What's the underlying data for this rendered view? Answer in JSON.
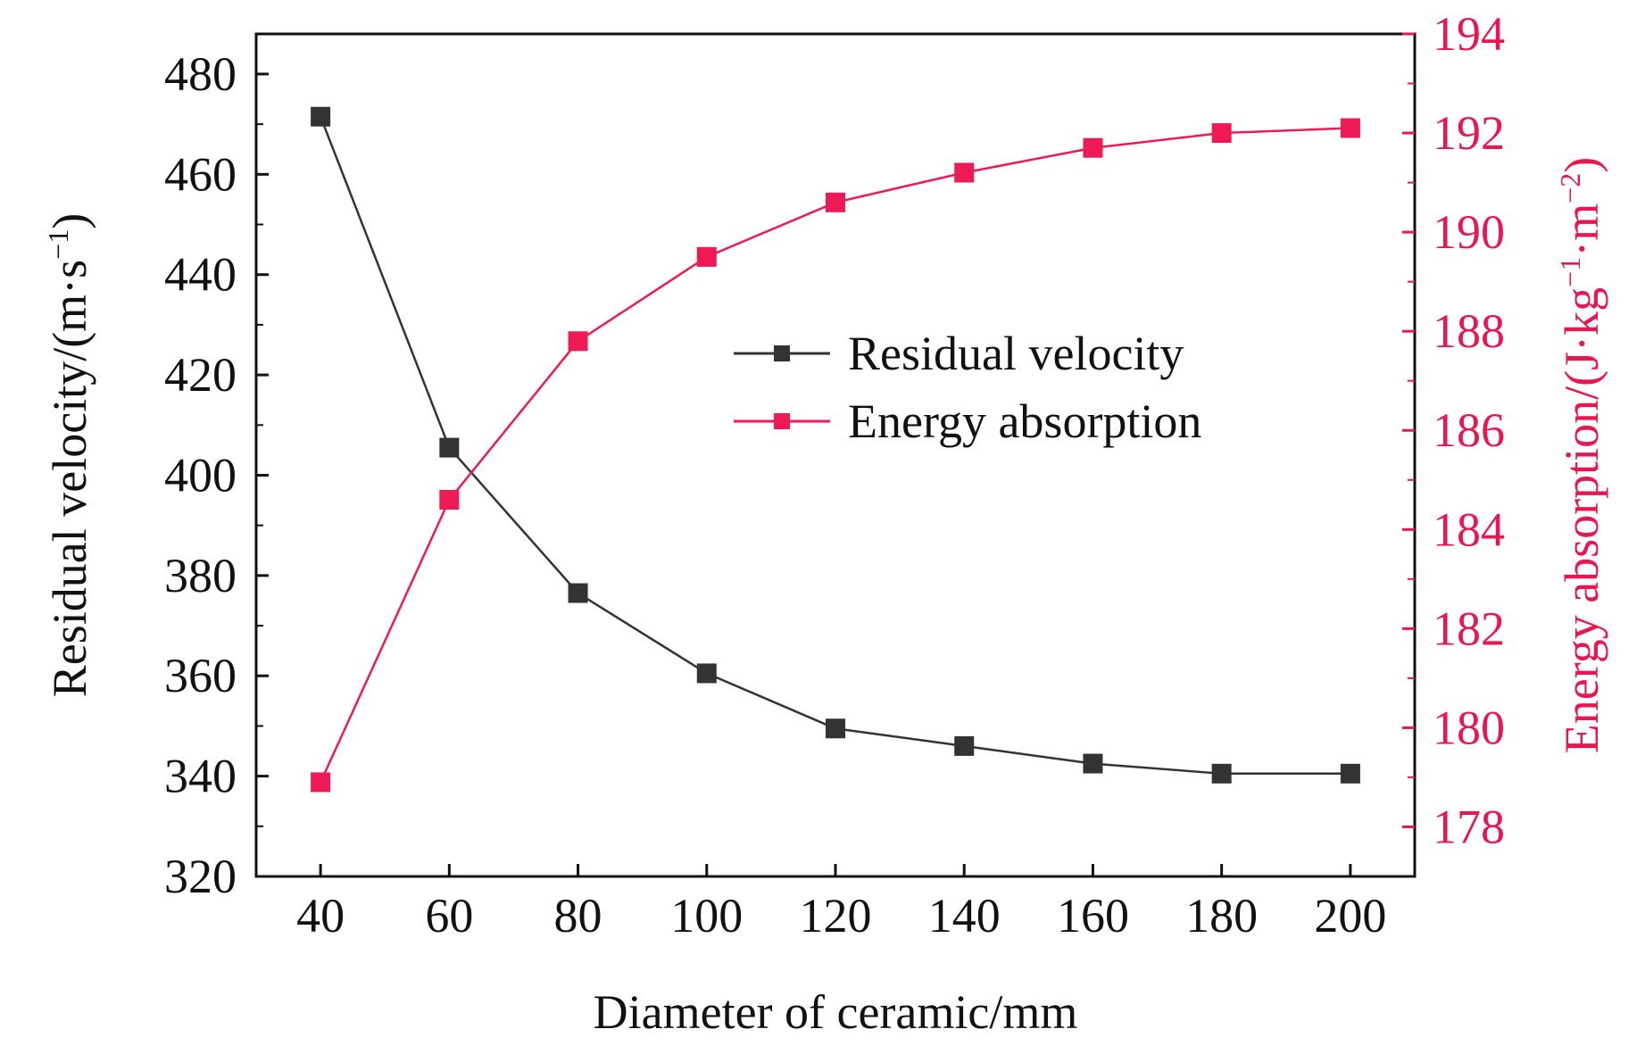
{
  "chart_data": {
    "type": "line",
    "xlabel": "Diameter of ceramic/mm",
    "x": [
      40,
      60,
      80,
      100,
      120,
      140,
      160,
      180,
      200
    ],
    "xlim": [
      30,
      210
    ],
    "xticks": [
      40,
      60,
      80,
      100,
      120,
      140,
      160,
      180,
      200
    ],
    "y_left": {
      "label_main": "Residual velocity/(m·s",
      "label_sup": "−1",
      "label_close": ")",
      "lim": [
        320,
        488
      ],
      "ticks": [
        320,
        340,
        360,
        380,
        400,
        420,
        440,
        460,
        480
      ],
      "color": "#111111"
    },
    "y_right": {
      "label_main": "Energy absorption/(J·kg",
      "label_sup1": "−1",
      "label_mid": "·m",
      "label_sup2": "−2",
      "label_close": ")",
      "lim": [
        177,
        194
      ],
      "ticks": [
        178,
        180,
        182,
        184,
        186,
        188,
        190,
        192,
        194
      ],
      "color": "#e8174f"
    },
    "series": [
      {
        "name": "Residual velocity",
        "axis": "left",
        "color": "#333333",
        "marker": "square",
        "values": [
          471.5,
          405.5,
          376.5,
          360.5,
          349.5,
          346,
          342.5,
          340.5,
          340.5
        ]
      },
      {
        "name": "Energy absorption",
        "axis": "right",
        "color": "#ee1a55",
        "marker": "square",
        "values": [
          178.9,
          184.6,
          187.8,
          189.5,
          190.6,
          191.2,
          191.7,
          192,
          192.1
        ]
      }
    ],
    "legend_position": "center-right",
    "grid": false
  }
}
